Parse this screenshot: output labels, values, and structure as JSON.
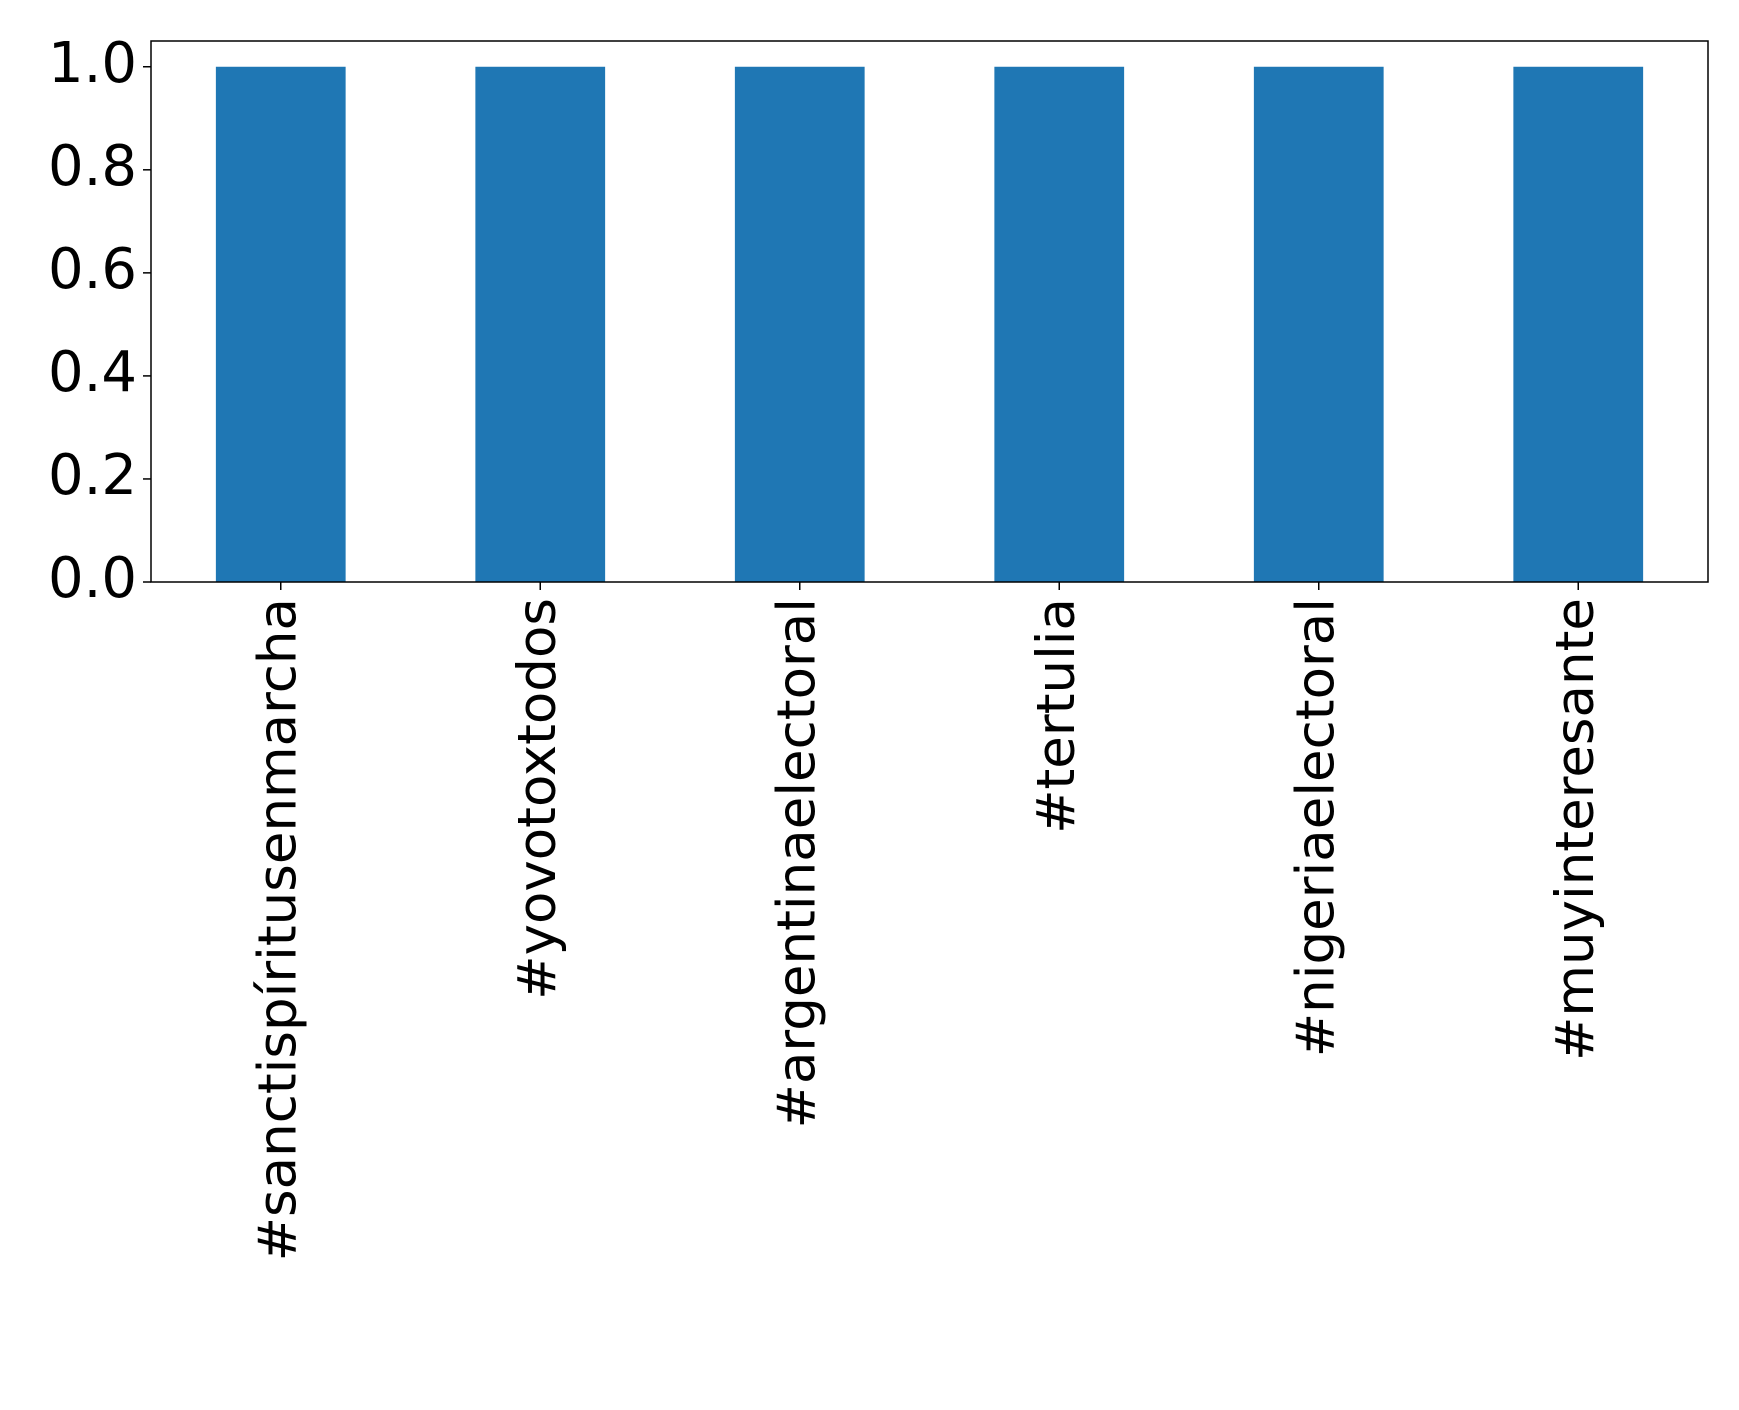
{
  "chart_data": {
    "type": "bar",
    "categories": [
      "#sanctispíritusenmarcha",
      "#yovotoxtodos",
      "#argentinaelectoral",
      "#tertulia",
      "#nigeriaelectoral",
      "#muyinteresante"
    ],
    "values": [
      1,
      1,
      1,
      1,
      1,
      1
    ],
    "color": "#1f77b4",
    "ylim": [
      0,
      1.05
    ],
    "yticks": [
      {
        "value": 0,
        "label": "0.0"
      },
      {
        "value": 0.2,
        "label": "0.2"
      },
      {
        "value": 0.4,
        "label": "0.4"
      },
      {
        "value": 0.6,
        "label": "0.6"
      },
      {
        "value": 0.8,
        "label": "0.8"
      },
      {
        "value": 1,
        "label": "1.0"
      }
    ],
    "grid": false
  }
}
